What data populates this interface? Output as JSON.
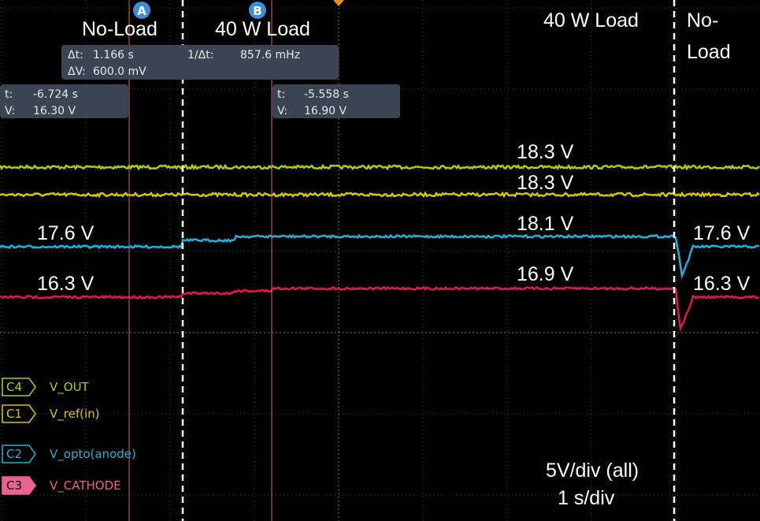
{
  "header": {
    "cursor_a": "A",
    "cursor_b": "B"
  },
  "annotations": {
    "region_1": "No-Load",
    "region_2": "40 W Load",
    "region_3": "40 W Load",
    "region_4_line1": "No-",
    "region_4_line2": "Load",
    "scale_vertical": "5V/div (all)",
    "scale_horizontal": "1 s/div"
  },
  "trace_labels": {
    "c4_right": "18.3 V",
    "c1_right": "18.3 V",
    "c2_mid": "18.1 V",
    "c3_mid": "16.9 V",
    "c2_left": "17.6 V",
    "c2_right": "17.6 V",
    "c3_left": "16.3 V",
    "c3_right": "16.3 V"
  },
  "delta_readout": {
    "dt_label": "Δt:",
    "dt_value": "1.166 s",
    "inv_label": "1/Δt:",
    "inv_value": "857.6 mHz",
    "dv_label": "ΔV:",
    "dv_value": "600.0 mV"
  },
  "cursor_a_readout": {
    "t_label": "t:",
    "t_value": "-6.724 s",
    "v_label": "V:",
    "v_value": "16.30 V"
  },
  "cursor_b_readout": {
    "t_label": "t:",
    "t_value": "-5.558 s",
    "v_label": "V:",
    "v_value": "16.90 V"
  },
  "channels": [
    {
      "badge": "C4",
      "name": "V_OUT"
    },
    {
      "badge": "C1",
      "name": "V_ref(in)"
    },
    {
      "badge": "C2",
      "name": "V_opto(anode)"
    },
    {
      "badge": "C3",
      "name": "V_CATHODE"
    }
  ]
}
